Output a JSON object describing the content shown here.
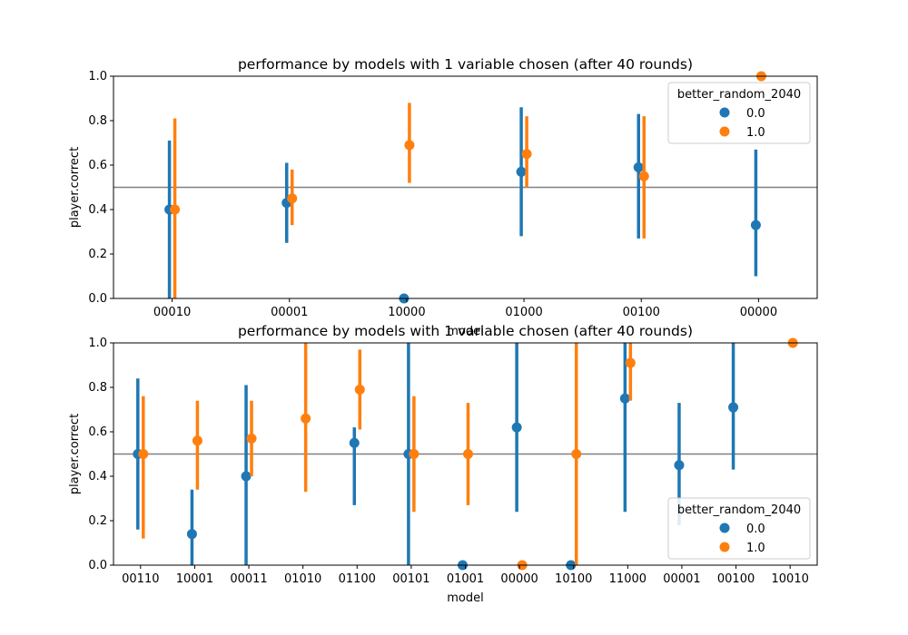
{
  "colors": {
    "series0": "#1f77b4",
    "series1": "#ff7f0e",
    "refline": "#808080",
    "axes": "#000000"
  },
  "chart_data": [
    {
      "type": "scatter",
      "title": "performance by models with 1 variable chosen (after 40 rounds)",
      "xlabel": "model",
      "ylabel": "player.correct",
      "ylim": [
        0,
        1
      ],
      "yticks": [
        "0.0",
        "0.2",
        "0.4",
        "0.6",
        "0.8",
        "1.0"
      ],
      "reference_line": 0.5,
      "grid": false,
      "legend": {
        "title": "better_random_2040",
        "placement": "top-right"
      },
      "categories": [
        "00010",
        "00001",
        "10000",
        "01000",
        "00100",
        "00000"
      ],
      "series": [
        {
          "name": "0.0",
          "values": [
            0.4,
            0.43,
            0.0,
            0.57,
            0.59,
            0.33
          ],
          "ci": [
            [
              0.0,
              0.71
            ],
            [
              0.25,
              0.61
            ],
            null,
            [
              0.28,
              0.86
            ],
            [
              0.27,
              0.83
            ],
            [
              0.1,
              0.67
            ]
          ]
        },
        {
          "name": "1.0",
          "values": [
            0.4,
            0.45,
            0.69,
            0.65,
            0.55,
            1.0
          ],
          "ci": [
            [
              0.0,
              0.81
            ],
            [
              0.33,
              0.58
            ],
            [
              0.52,
              0.88
            ],
            [
              0.5,
              0.82
            ],
            [
              0.27,
              0.82
            ],
            null
          ]
        }
      ]
    },
    {
      "type": "scatter",
      "title": "performance by models with 1 variable chosen (after 40 rounds)",
      "xlabel": "model",
      "ylabel": "player.correct",
      "ylim": [
        0,
        1
      ],
      "yticks": [
        "0.0",
        "0.2",
        "0.4",
        "0.6",
        "0.8",
        "1.0"
      ],
      "reference_line": 0.5,
      "grid": false,
      "legend": {
        "title": "better_random_2040",
        "placement": "bottom-right"
      },
      "categories": [
        "00110",
        "10001",
        "00011",
        "01010",
        "01100",
        "00101",
        "01001",
        "00000",
        "10100",
        "11000",
        "00001",
        "00100",
        "10010"
      ],
      "series": [
        {
          "name": "0.0",
          "values": [
            0.5,
            0.14,
            0.4,
            null,
            0.55,
            0.5,
            0.0,
            0.62,
            0.0,
            0.75,
            0.45,
            0.71,
            null
          ],
          "ci": [
            [
              0.16,
              0.84
            ],
            [
              0.0,
              0.34
            ],
            [
              0.0,
              0.81
            ],
            null,
            [
              0.27,
              0.62
            ],
            [
              0.0,
              1.0
            ],
            null,
            [
              0.24,
              1.0
            ],
            null,
            [
              0.24,
              1.0
            ],
            [
              0.18,
              0.73
            ],
            [
              0.43,
              1.0
            ],
            null
          ]
        },
        {
          "name": "1.0",
          "values": [
            0.5,
            0.56,
            0.57,
            0.66,
            0.79,
            0.5,
            0.5,
            0.0,
            0.5,
            0.91,
            null,
            null,
            1.0
          ],
          "ci": [
            [
              0.12,
              0.76
            ],
            [
              0.34,
              0.74
            ],
            [
              0.4,
              0.74
            ],
            [
              0.33,
              1.0
            ],
            [
              0.61,
              0.97
            ],
            [
              0.24,
              0.76
            ],
            [
              0.27,
              0.73
            ],
            null,
            [
              0.0,
              1.0
            ],
            [
              0.74,
              1.0
            ],
            null,
            null,
            null
          ]
        }
      ]
    }
  ]
}
